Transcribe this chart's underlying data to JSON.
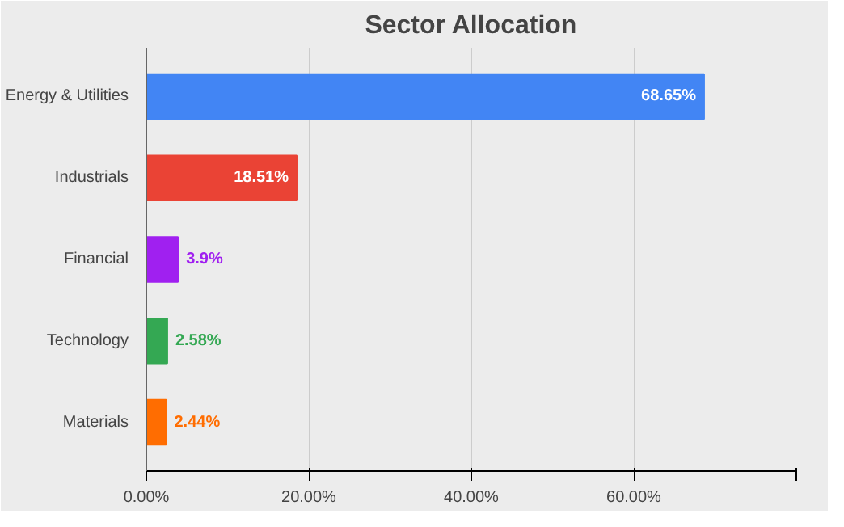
{
  "chart_data": {
    "type": "bar",
    "orientation": "horizontal",
    "title": "Sector Allocation",
    "categories": [
      "Energy & Utilities",
      "Industrials",
      "Financial",
      "Technology",
      "Materials"
    ],
    "values": [
      68.65,
      18.51,
      3.9,
      2.58,
      2.44
    ],
    "colors": [
      "#4285f4",
      "#ea4335",
      "#a020f0",
      "#34a853",
      "#ff6d01"
    ],
    "value_labels": [
      "68.65%",
      "18.51%",
      "3.9%",
      "2.58%",
      "2.44%"
    ],
    "xlim": [
      0,
      80
    ],
    "xticks": [
      {
        "value": 0,
        "label": "0.00%"
      },
      {
        "value": 20,
        "label": "20.00%"
      },
      {
        "value": 40,
        "label": "40.00%"
      },
      {
        "value": 60,
        "label": "60.00%"
      },
      {
        "value": 80,
        "label": null
      }
    ],
    "grid": "x"
  }
}
